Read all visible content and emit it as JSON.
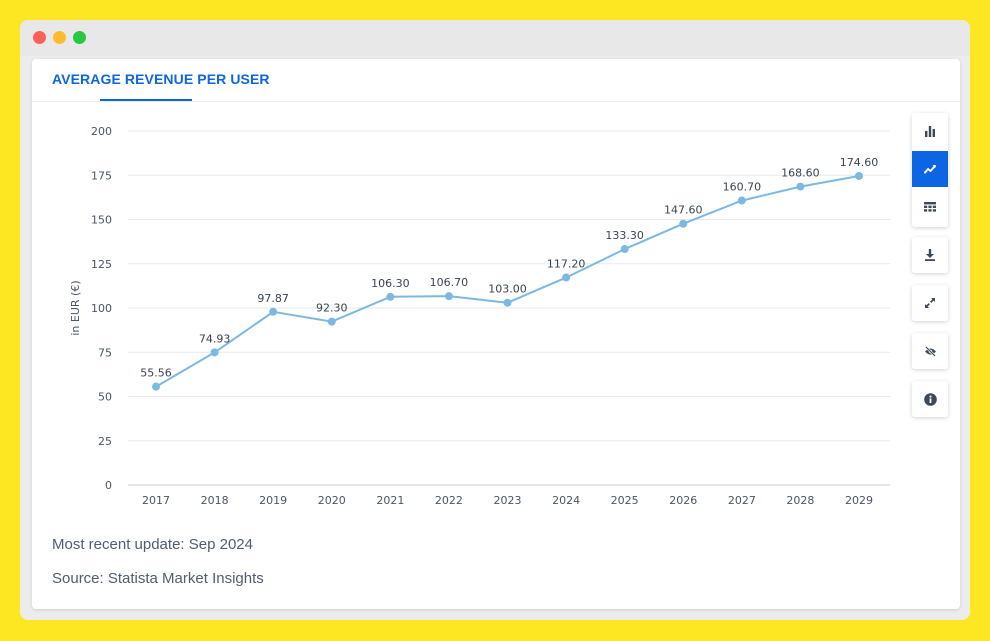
{
  "card": {
    "title": "AVERAGE REVENUE PER USER",
    "update_text": "Most recent update: Sep 2024",
    "source_text": "Source: Statista Market Insights"
  },
  "toolbar": {
    "buttons": [
      {
        "name": "bar-chart-button",
        "icon": "bar-chart-icon",
        "active": false
      },
      {
        "name": "line-chart-button",
        "icon": "line-chart-icon",
        "active": true
      },
      {
        "name": "table-view-button",
        "icon": "table-icon",
        "active": false
      },
      {
        "name": "download-button",
        "icon": "download-icon",
        "active": false
      },
      {
        "name": "fullscreen-button",
        "icon": "expand-icon",
        "active": false
      },
      {
        "name": "hide-button",
        "icon": "eye-off-icon",
        "active": false
      },
      {
        "name": "info-button",
        "icon": "info-icon",
        "active": false
      }
    ]
  },
  "colors": {
    "background": "#fde723",
    "accent": "#0c66e4",
    "line": "#7db8e3",
    "footer_text": "#4f5e71"
  },
  "chart_data": {
    "type": "line",
    "title": "",
    "xlabel": "",
    "ylabel": "in EUR (€)",
    "x": [
      "2017",
      "2018",
      "2019",
      "2020",
      "2021",
      "2022",
      "2023",
      "2024",
      "2025",
      "2026",
      "2027",
      "2028",
      "2029"
    ],
    "series": [
      {
        "values": [
          55.56,
          74.93,
          97.87,
          92.3,
          106.3,
          106.7,
          103.0,
          117.2,
          133.3,
          147.6,
          160.7,
          168.6,
          174.6
        ]
      }
    ],
    "data_labels": [
      "55.56",
      "74.93",
      "97.87",
      "92.30",
      "106.30",
      "106.70",
      "103.00",
      "117.20",
      "133.30",
      "147.60",
      "160.70",
      "168.60",
      "174.60"
    ],
    "yticks": [
      0,
      25,
      50,
      75,
      100,
      125,
      150,
      175,
      200
    ],
    "ylim": [
      0,
      200
    ],
    "grid": true,
    "legend": "none"
  }
}
